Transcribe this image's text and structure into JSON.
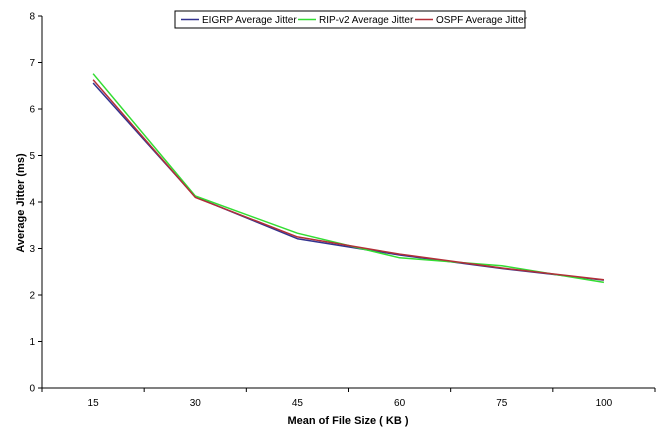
{
  "chart_data": {
    "type": "line",
    "categories": [
      "15",
      "30",
      "45",
      "60",
      "75",
      "100"
    ],
    "series": [
      {
        "name": "EIGRP Average Jitter",
        "color": "#33338f",
        "values": [
          6.56,
          4.11,
          3.21,
          2.86,
          2.57,
          2.32
        ]
      },
      {
        "name": "RIP-v2 Average Jitter",
        "color": "#33dd33",
        "values": [
          6.76,
          4.13,
          3.33,
          2.8,
          2.63,
          2.27
        ]
      },
      {
        "name": "OSPF Average Jitter",
        "color": "#b22f38",
        "values": [
          6.63,
          4.1,
          3.25,
          2.88,
          2.58,
          2.33
        ]
      }
    ],
    "xlabel": "Mean of File Size ( KB )",
    "ylabel": "Average Jitter (ms)",
    "ylim": [
      0,
      8
    ],
    "yticks": [
      "0",
      "1",
      "2",
      "3",
      "4",
      "5",
      "6",
      "7",
      "8"
    ],
    "grid": false,
    "legend_position": "top"
  }
}
